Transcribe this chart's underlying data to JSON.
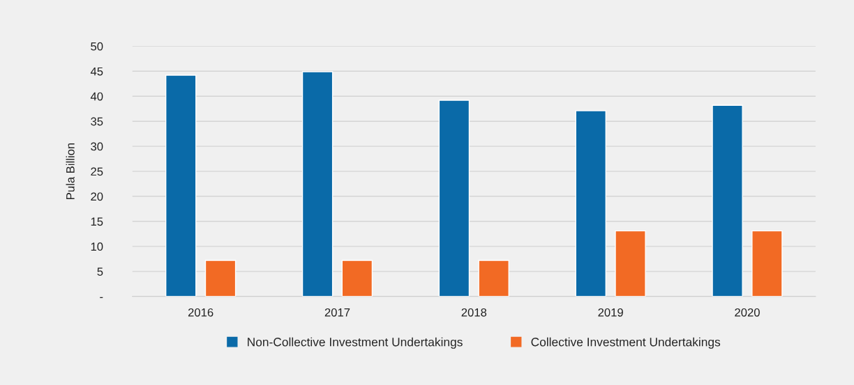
{
  "chart_data": {
    "type": "bar",
    "ylabel": "Pula Billion",
    "categories": [
      "2016",
      "2017",
      "2018",
      "2019",
      "2020"
    ],
    "series": [
      {
        "name": "Non-Collective Investment Undertakings",
        "color": "#0a6aa8",
        "values": [
          44.2,
          44.9,
          39.2,
          37.1,
          38.2
        ]
      },
      {
        "name": "Collective Investment Undertakings",
        "color": "#f26a24",
        "values": [
          7.2,
          7.2,
          7.2,
          13.1,
          13.1
        ]
      }
    ],
    "ylim": [
      0,
      50
    ],
    "yticks": [
      {
        "value": 0,
        "label": "-"
      },
      5,
      10,
      15,
      20,
      25,
      30,
      35,
      40,
      45,
      50
    ],
    "grid": "y",
    "legend": "bottom"
  }
}
